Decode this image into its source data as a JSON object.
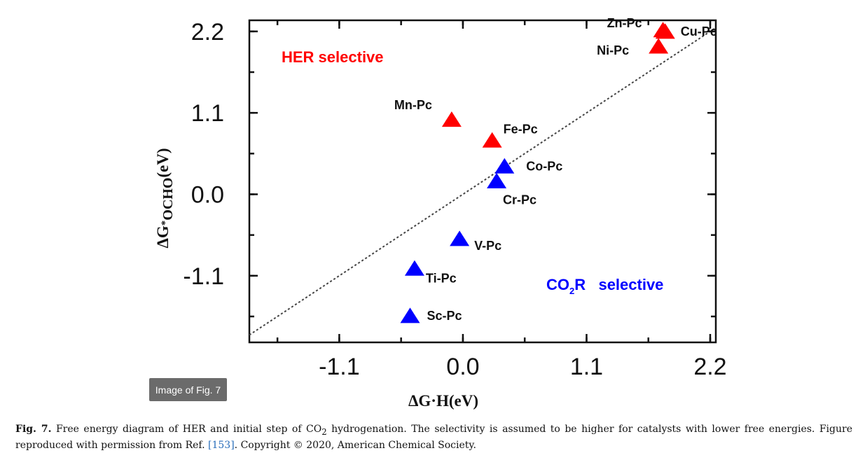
{
  "chart_data": {
    "type": "scatter",
    "xlabel": "ΔG·H(eV)",
    "ylabel_parts": [
      "ΔG",
      "*",
      "OCHO",
      "(eV)"
    ],
    "xlim": [
      -1.9,
      2.25
    ],
    "ylim": [
      -2.0,
      2.35
    ],
    "x_ticks": [
      -1.1,
      0.0,
      1.1,
      2.2
    ],
    "x_tick_labels": [
      "-1.1",
      "0.0",
      "1.1",
      "2.2"
    ],
    "y_ticks": [
      2.2,
      1.1,
      0.0,
      -1.1
    ],
    "y_tick_labels": [
      "2.2",
      "1.1",
      "0.0",
      "-1.1"
    ],
    "diagonal": "y = x (dotted)",
    "series": [
      {
        "color": "#ff0000",
        "points": [
          {
            "label": "Zn-Pc",
            "x": 1.78,
            "y": 2.2
          },
          {
            "label": "Cu-Pc",
            "x": 1.8,
            "y": 2.18
          },
          {
            "label": "Ni-Pc",
            "x": 1.74,
            "y": 1.98
          },
          {
            "label": "Mn-Pc",
            "x": -0.1,
            "y": 0.99
          },
          {
            "label": "Fe-Pc",
            "x": 0.26,
            "y": 0.71
          }
        ]
      },
      {
        "color": "#0000ff",
        "points": [
          {
            "label": "Co-Pc",
            "x": 0.37,
            "y": 0.36
          },
          {
            "label": "Cr-Pc",
            "x": 0.3,
            "y": 0.16
          },
          {
            "label": "V-Pc",
            "x": -0.03,
            "y": -0.62
          },
          {
            "label": "Ti-Pc",
            "x": -0.43,
            "y": -1.02
          },
          {
            "label": "Sc-Pc",
            "x": -0.47,
            "y": -1.66
          }
        ]
      }
    ],
    "annotations": [
      {
        "text": "HER selective",
        "color": "#ff0000"
      },
      {
        "text_main": "CO",
        "text_sub": "2",
        "text_rest": "R   selective",
        "color": "#0000ff"
      }
    ]
  },
  "badge": "Image of Fig. 7",
  "caption": {
    "fig_label": "Fig. 7.",
    "text_a": " Free energy diagram of HER and initial step of CO",
    "sub": "2",
    "text_b": " hydrogenation. The selectivity is assumed to be higher for catalysts with lower free energies. Figure reproduced with permission from Ref. ",
    "ref": "[153]",
    "text_c": ". Copyright © 2020, American Chemical Society."
  }
}
